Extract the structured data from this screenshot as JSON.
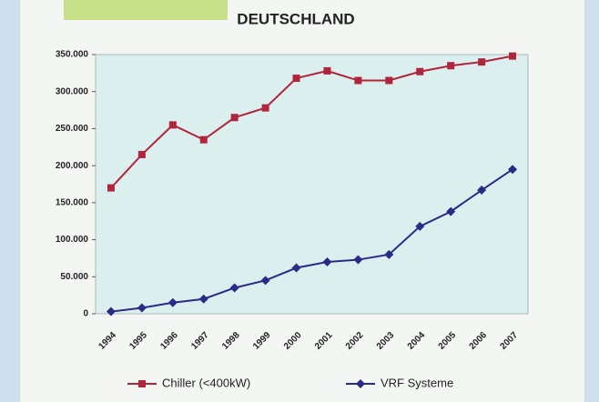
{
  "chart_data": {
    "type": "line",
    "title": "DEUTSCHLAND",
    "categories": [
      "1994",
      "1995",
      "1996",
      "1997",
      "1998",
      "1999",
      "2000",
      "2001",
      "2002",
      "2003",
      "2004",
      "2005",
      "2006",
      "2007"
    ],
    "series": [
      {
        "name": "Chiller (<400kW)",
        "color": "#b0243c",
        "marker": "square",
        "values": [
          170000,
          215000,
          255000,
          235000,
          265000,
          278000,
          318000,
          328000,
          315000,
          315000,
          327000,
          335000,
          340000,
          348000
        ]
      },
      {
        "name": "VRF Systeme",
        "color": "#2b2a86",
        "marker": "diamond",
        "values": [
          3000,
          8000,
          15000,
          20000,
          35000,
          45000,
          62000,
          70000,
          73000,
          80000,
          118000,
          138000,
          167000,
          195000
        ]
      }
    ],
    "ylim": [
      0,
      350000
    ],
    "yticks": [
      0,
      {
        "value": 50000,
        "label": "50.000"
      },
      {
        "value": 100000,
        "label": "100.000"
      },
      {
        "value": 150000,
        "label": "150.000"
      },
      {
        "value": 200000,
        "label": "200.000"
      },
      {
        "value": 250000,
        "label": "250.000"
      },
      {
        "value": 300000,
        "label": "300.000"
      },
      {
        "value": 350000,
        "label": "350.000"
      }
    ],
    "grid": false,
    "legend": "bottom",
    "plot_background": "#dcefef"
  }
}
